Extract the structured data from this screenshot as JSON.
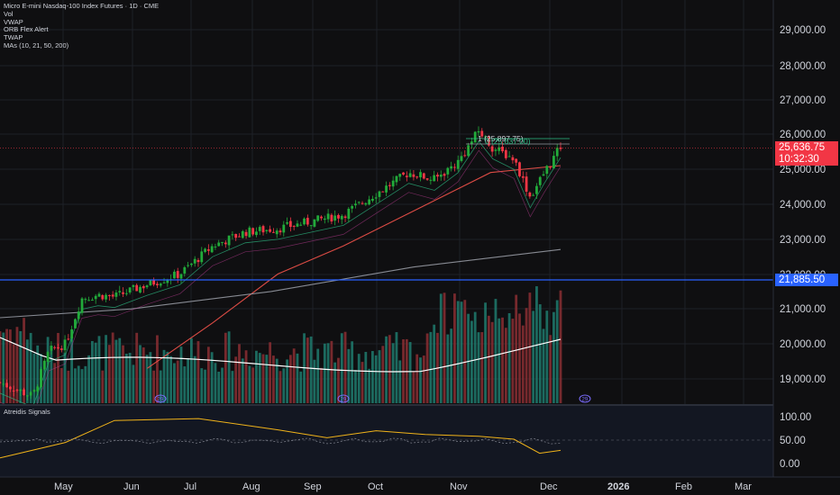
{
  "header": {
    "title": "Micro E-mini Nasdaq-100 Index Futures · 1D · CME",
    "indicators": [
      "Vol",
      "VWAP",
      "ORB Flex Alert",
      "TWAP",
      "MAs (10, 21, 50, 200)"
    ]
  },
  "price_scale": {
    "labels": [
      "29,000.00",
      "28,000.00",
      "27,000.00",
      "26,000.00",
      "25,000.00",
      "24,000.00",
      "23,000.00",
      "22,000.00",
      "21,000.00",
      "20,000.00",
      "19,000.00"
    ],
    "last_price": "25,636.75",
    "countdown": "10:32:30",
    "hline_price": "21,885.50"
  },
  "annotations": {
    "fib_1": "1 (25,897.75)",
    "fib_2": "0 (25,637.00)",
    "event_marker": "29"
  },
  "oscillator": {
    "title": "Atreidis Signals",
    "labels": [
      "100.00",
      "50.00",
      "0.00"
    ]
  },
  "time_axis": {
    "labels": [
      "May",
      "Jun",
      "Jul",
      "Aug",
      "Sep",
      "Oct",
      "Nov",
      "Dec",
      "2026",
      "Feb",
      "Mar"
    ]
  },
  "colors": {
    "background": "#0f0f11",
    "up": "#22ab3a",
    "down": "#f23645",
    "hline": "#2962ff",
    "ma_red": "#f2524a",
    "ma_green": "#2ebd85",
    "ma_grey": "#9598a1",
    "vwap": "#ffffff",
    "osc_line": "#f0b31a"
  },
  "chart_data": {
    "type": "candlestick",
    "title": "Micro E-mini Nasdaq-100 Index Futures · 1D · CME",
    "ylim": [
      18300,
      30000
    ],
    "last_price": 25636.75,
    "horizontal_line": 21885.5,
    "closes": [
      {
        "date": "2025-04-07",
        "close": 18900
      },
      {
        "date": "2025-04-21",
        "close": 18500
      },
      {
        "date": "2025-04-28",
        "close": 19800
      },
      {
        "date": "2025-05-05",
        "close": 20000
      },
      {
        "date": "2025-05-12",
        "close": 21300
      },
      {
        "date": "2025-05-19",
        "close": 21400
      },
      {
        "date": "2025-05-26",
        "close": 21350
      },
      {
        "date": "2025-06-09",
        "close": 21700
      },
      {
        "date": "2025-06-23",
        "close": 22000
      },
      {
        "date": "2025-07-07",
        "close": 22800
      },
      {
        "date": "2025-07-21",
        "close": 23200
      },
      {
        "date": "2025-08-04",
        "close": 23300
      },
      {
        "date": "2025-08-18",
        "close": 23500
      },
      {
        "date": "2025-09-01",
        "close": 23700
      },
      {
        "date": "2025-09-15",
        "close": 24300
      },
      {
        "date": "2025-09-29",
        "close": 24900
      },
      {
        "date": "2025-10-10",
        "close": 24700
      },
      {
        "date": "2025-10-20",
        "close": 25200
      },
      {
        "date": "2025-10-29",
        "close": 26100
      },
      {
        "date": "2025-11-04",
        "close": 25600
      },
      {
        "date": "2025-11-13",
        "close": 25300
      },
      {
        "date": "2025-11-20",
        "close": 24200
      },
      {
        "date": "2025-11-26",
        "close": 24900
      },
      {
        "date": "2025-12-03",
        "close": 25636.75
      }
    ],
    "series": [
      {
        "name": "MA 50",
        "color": "#f2524a",
        "values": [
          {
            "date": "2025-06-09",
            "value": 19300
          },
          {
            "date": "2025-07-07",
            "value": 20600
          },
          {
            "date": "2025-08-04",
            "value": 22000
          },
          {
            "date": "2025-09-01",
            "value": 22800
          },
          {
            "date": "2025-10-01",
            "value": 23800
          },
          {
            "date": "2025-11-03",
            "value": 24900
          },
          {
            "date": "2025-12-03",
            "value": 25100
          }
        ]
      },
      {
        "name": "MA 200",
        "color": "#9598a1",
        "values": [
          {
            "date": "2025-04-07",
            "value": 20750
          },
          {
            "date": "2025-06-02",
            "value": 21000
          },
          {
            "date": "2025-08-01",
            "value": 21500
          },
          {
            "date": "2025-10-01",
            "value": 22200
          },
          {
            "date": "2025-12-03",
            "value": 22700
          }
        ]
      }
    ],
    "volume_profile": "relative",
    "oscillator": {
      "name": "Atreidis Signals",
      "ylim": [
        0,
        100
      ],
      "values": [
        {
          "date": "2025-04-07",
          "value": 12
        },
        {
          "date": "2025-05-05",
          "value": 45
        },
        {
          "date": "2025-05-26",
          "value": 92
        },
        {
          "date": "2025-07-01",
          "value": 96
        },
        {
          "date": "2025-08-04",
          "value": 72
        },
        {
          "date": "2025-08-25",
          "value": 55
        },
        {
          "date": "2025-09-15",
          "value": 70
        },
        {
          "date": "2025-10-06",
          "value": 62
        },
        {
          "date": "2025-10-29",
          "value": 58
        },
        {
          "date": "2025-11-13",
          "value": 52
        },
        {
          "date": "2025-11-24",
          "value": 22
        },
        {
          "date": "2025-12-03",
          "value": 28
        }
      ]
    }
  }
}
